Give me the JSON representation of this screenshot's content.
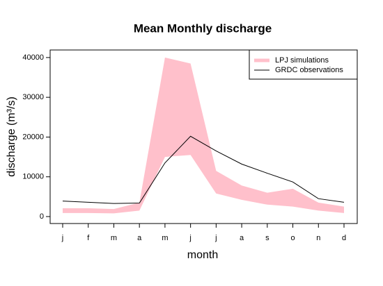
{
  "chart_data": {
    "type": "line",
    "title": "Mean Monthly discharge",
    "x_label": "month",
    "y_label": "discharge (m³/s)",
    "categories": [
      "j",
      "f",
      "m",
      "a",
      "m",
      "j",
      "j",
      "a",
      "s",
      "o",
      "n",
      "d"
    ],
    "series": [
      {
        "name": "LPJ simulations",
        "color": "#ffc0cb",
        "kind": "band",
        "lower": [
          900,
          900,
          800,
          1500,
          15000,
          15500,
          5800,
          4200,
          3000,
          2500,
          1500,
          900
        ],
        "upper": [
          2100,
          2100,
          1900,
          3500,
          40000,
          38500,
          11500,
          7800,
          6000,
          7000,
          3500,
          2500
        ]
      },
      {
        "name": "GRDC observations",
        "color": "#000000",
        "kind": "line",
        "values": [
          3900,
          3600,
          3300,
          3400,
          13500,
          20200,
          16500,
          13200,
          10900,
          8700,
          4500,
          3600
        ]
      }
    ],
    "ylim": [
      -1750,
      41900
    ],
    "yticks": [
      0,
      10000,
      20000,
      30000,
      40000
    ],
    "legend": "top-right"
  }
}
